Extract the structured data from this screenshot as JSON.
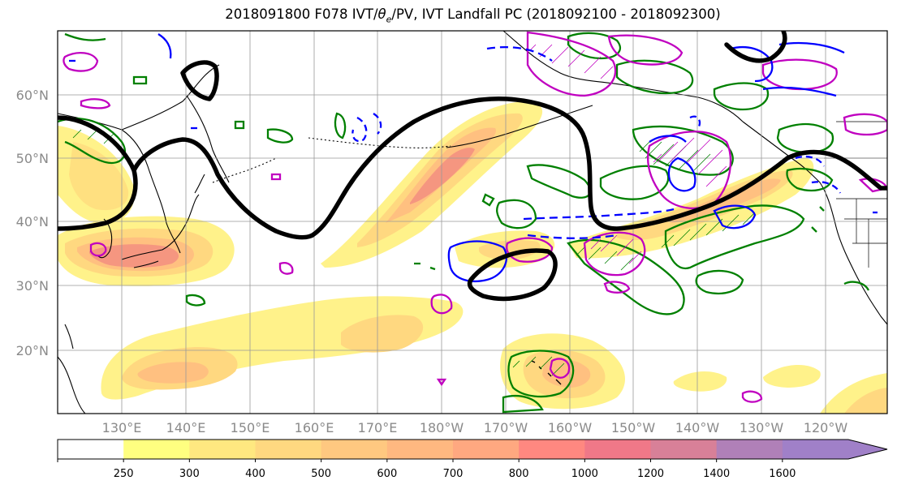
{
  "title": {
    "prefix": "2018091800 F078 IVT/",
    "theta": "θ",
    "theta_sub": "e",
    "suffix": "/PV, IVT Landfall PC (2018092100 - 2018092300)"
  },
  "axes": {
    "lat_labels": [
      "20°N",
      "30°N",
      "40°N",
      "50°N",
      "60°N"
    ],
    "lon_labels": [
      "130°E",
      "140°E",
      "150°E",
      "160°E",
      "170°E",
      "180°W",
      "170°W",
      "160°W",
      "150°W",
      "140°W",
      "130°W",
      "120°W"
    ]
  },
  "colorbar": {
    "levels": [
      "250",
      "300",
      "400",
      "500",
      "600",
      "700",
      "800",
      "1000",
      "1200",
      "1400",
      "1600"
    ],
    "colors": [
      "#ffff80",
      "#ffe880",
      "#ffd880",
      "#ffc880",
      "#ffb880",
      "#ffa880",
      "#ff8880",
      "#f07888",
      "#d88098",
      "#b080b8",
      "#a080c8"
    ]
  },
  "legend_colors": {
    "ivt_fill_low": "#fff28a",
    "ivt_fill_mid": "#ffc880",
    "ivt_fill_high": "#f08080",
    "landfall_pc": "#000000",
    "theta_e": "#0000ff",
    "pv_green": "#008000",
    "pv_magenta": "#c000c0"
  }
}
